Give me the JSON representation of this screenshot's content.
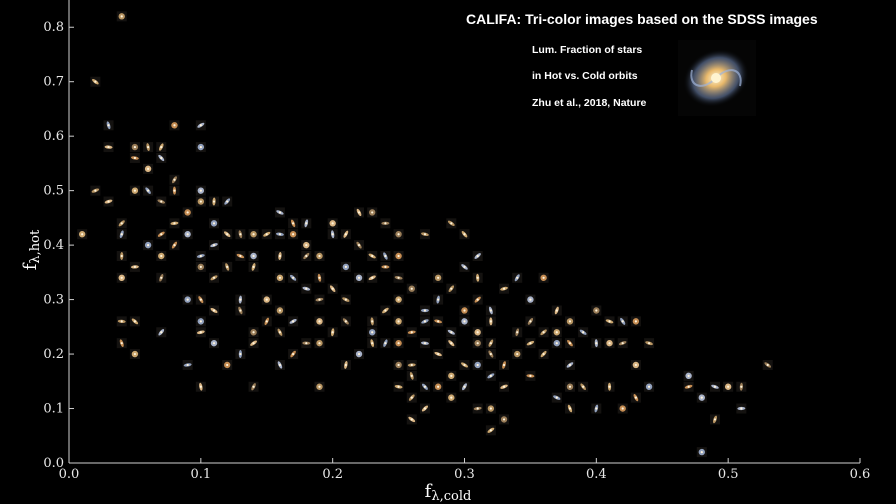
{
  "chart_data": {
    "type": "scatter",
    "title": "CALIFA: Tri-color images based on the SDSS images",
    "notes": [
      "Lum. Fraction of stars",
      "in Hot vs. Cold orbits",
      "Zhu et al., 2018, Nature"
    ],
    "xlabel": "f",
    "xlabel_sub": "λ,cold",
    "ylabel": "f",
    "ylabel_sub": "λ,hot",
    "xlim": [
      0.0,
      0.6
    ],
    "ylim": [
      0.0,
      0.85
    ],
    "xticks": [
      "0.0",
      "0.1",
      "0.2",
      "0.3",
      "0.4",
      "0.5",
      "0.6"
    ],
    "yticks": [
      "0.0",
      "0.1",
      "0.2",
      "0.3",
      "0.4",
      "0.5",
      "0.6",
      "0.7",
      "0.8"
    ],
    "marker": "galaxy-thumbnail",
    "points": [
      [
        0.04,
        0.82
      ],
      [
        0.02,
        0.7
      ],
      [
        0.03,
        0.62
      ],
      [
        0.08,
        0.62
      ],
      [
        0.1,
        0.62
      ],
      [
        0.03,
        0.58
      ],
      [
        0.05,
        0.58
      ],
      [
        0.06,
        0.58
      ],
      [
        0.07,
        0.58
      ],
      [
        0.1,
        0.58
      ],
      [
        0.05,
        0.56
      ],
      [
        0.07,
        0.56
      ],
      [
        0.06,
        0.54
      ],
      [
        0.08,
        0.52
      ],
      [
        0.02,
        0.5
      ],
      [
        0.05,
        0.5
      ],
      [
        0.06,
        0.5
      ],
      [
        0.08,
        0.5
      ],
      [
        0.1,
        0.5
      ],
      [
        0.03,
        0.48
      ],
      [
        0.07,
        0.48
      ],
      [
        0.1,
        0.48
      ],
      [
        0.11,
        0.48
      ],
      [
        0.12,
        0.48
      ],
      [
        0.09,
        0.46
      ],
      [
        0.16,
        0.46
      ],
      [
        0.22,
        0.46
      ],
      [
        0.23,
        0.46
      ],
      [
        0.04,
        0.44
      ],
      [
        0.08,
        0.44
      ],
      [
        0.11,
        0.44
      ],
      [
        0.17,
        0.44
      ],
      [
        0.18,
        0.44
      ],
      [
        0.2,
        0.44
      ],
      [
        0.24,
        0.44
      ],
      [
        0.29,
        0.44
      ],
      [
        0.01,
        0.42
      ],
      [
        0.04,
        0.42
      ],
      [
        0.07,
        0.42
      ],
      [
        0.09,
        0.42
      ],
      [
        0.12,
        0.42
      ],
      [
        0.13,
        0.42
      ],
      [
        0.14,
        0.42
      ],
      [
        0.15,
        0.42
      ],
      [
        0.16,
        0.42
      ],
      [
        0.17,
        0.42
      ],
      [
        0.2,
        0.42
      ],
      [
        0.21,
        0.42
      ],
      [
        0.25,
        0.42
      ],
      [
        0.27,
        0.42
      ],
      [
        0.3,
        0.42
      ],
      [
        0.06,
        0.4
      ],
      [
        0.08,
        0.4
      ],
      [
        0.11,
        0.4
      ],
      [
        0.18,
        0.4
      ],
      [
        0.22,
        0.4
      ],
      [
        0.04,
        0.38
      ],
      [
        0.07,
        0.38
      ],
      [
        0.1,
        0.38
      ],
      [
        0.13,
        0.38
      ],
      [
        0.14,
        0.38
      ],
      [
        0.16,
        0.38
      ],
      [
        0.18,
        0.38
      ],
      [
        0.19,
        0.38
      ],
      [
        0.23,
        0.38
      ],
      [
        0.24,
        0.38
      ],
      [
        0.25,
        0.38
      ],
      [
        0.31,
        0.38
      ],
      [
        0.05,
        0.36
      ],
      [
        0.1,
        0.36
      ],
      [
        0.12,
        0.36
      ],
      [
        0.14,
        0.36
      ],
      [
        0.21,
        0.36
      ],
      [
        0.24,
        0.36
      ],
      [
        0.3,
        0.36
      ],
      [
        0.04,
        0.34
      ],
      [
        0.07,
        0.34
      ],
      [
        0.11,
        0.34
      ],
      [
        0.16,
        0.34
      ],
      [
        0.17,
        0.34
      ],
      [
        0.19,
        0.34
      ],
      [
        0.22,
        0.34
      ],
      [
        0.23,
        0.34
      ],
      [
        0.25,
        0.34
      ],
      [
        0.28,
        0.34
      ],
      [
        0.31,
        0.34
      ],
      [
        0.34,
        0.34
      ],
      [
        0.36,
        0.34
      ],
      [
        0.18,
        0.32
      ],
      [
        0.2,
        0.32
      ],
      [
        0.26,
        0.32
      ],
      [
        0.29,
        0.32
      ],
      [
        0.33,
        0.32
      ],
      [
        0.09,
        0.3
      ],
      [
        0.1,
        0.3
      ],
      [
        0.13,
        0.3
      ],
      [
        0.15,
        0.3
      ],
      [
        0.19,
        0.3
      ],
      [
        0.21,
        0.3
      ],
      [
        0.25,
        0.3
      ],
      [
        0.28,
        0.3
      ],
      [
        0.31,
        0.3
      ],
      [
        0.35,
        0.3
      ],
      [
        0.11,
        0.28
      ],
      [
        0.13,
        0.28
      ],
      [
        0.16,
        0.28
      ],
      [
        0.24,
        0.28
      ],
      [
        0.27,
        0.28
      ],
      [
        0.3,
        0.28
      ],
      [
        0.32,
        0.28
      ],
      [
        0.37,
        0.28
      ],
      [
        0.4,
        0.28
      ],
      [
        0.04,
        0.26
      ],
      [
        0.05,
        0.26
      ],
      [
        0.1,
        0.26
      ],
      [
        0.15,
        0.26
      ],
      [
        0.17,
        0.26
      ],
      [
        0.19,
        0.26
      ],
      [
        0.21,
        0.26
      ],
      [
        0.23,
        0.26
      ],
      [
        0.25,
        0.26
      ],
      [
        0.27,
        0.26
      ],
      [
        0.28,
        0.26
      ],
      [
        0.3,
        0.26
      ],
      [
        0.32,
        0.26
      ],
      [
        0.35,
        0.26
      ],
      [
        0.38,
        0.26
      ],
      [
        0.41,
        0.26
      ],
      [
        0.42,
        0.26
      ],
      [
        0.43,
        0.26
      ],
      [
        0.07,
        0.24
      ],
      [
        0.1,
        0.24
      ],
      [
        0.14,
        0.24
      ],
      [
        0.16,
        0.24
      ],
      [
        0.2,
        0.24
      ],
      [
        0.23,
        0.24
      ],
      [
        0.26,
        0.24
      ],
      [
        0.29,
        0.24
      ],
      [
        0.31,
        0.24
      ],
      [
        0.34,
        0.24
      ],
      [
        0.36,
        0.24
      ],
      [
        0.37,
        0.24
      ],
      [
        0.39,
        0.24
      ],
      [
        0.04,
        0.22
      ],
      [
        0.11,
        0.22
      ],
      [
        0.14,
        0.22
      ],
      [
        0.18,
        0.22
      ],
      [
        0.19,
        0.22
      ],
      [
        0.23,
        0.22
      ],
      [
        0.24,
        0.22
      ],
      [
        0.25,
        0.22
      ],
      [
        0.27,
        0.22
      ],
      [
        0.29,
        0.22
      ],
      [
        0.31,
        0.22
      ],
      [
        0.32,
        0.22
      ],
      [
        0.35,
        0.22
      ],
      [
        0.37,
        0.22
      ],
      [
        0.38,
        0.22
      ],
      [
        0.4,
        0.22
      ],
      [
        0.41,
        0.22
      ],
      [
        0.42,
        0.22
      ],
      [
        0.44,
        0.22
      ],
      [
        0.05,
        0.2
      ],
      [
        0.13,
        0.2
      ],
      [
        0.17,
        0.2
      ],
      [
        0.22,
        0.2
      ],
      [
        0.28,
        0.2
      ],
      [
        0.32,
        0.2
      ],
      [
        0.34,
        0.2
      ],
      [
        0.36,
        0.2
      ],
      [
        0.09,
        0.18
      ],
      [
        0.12,
        0.18
      ],
      [
        0.16,
        0.18
      ],
      [
        0.21,
        0.18
      ],
      [
        0.25,
        0.18
      ],
      [
        0.26,
        0.18
      ],
      [
        0.3,
        0.18
      ],
      [
        0.31,
        0.18
      ],
      [
        0.33,
        0.18
      ],
      [
        0.38,
        0.18
      ],
      [
        0.43,
        0.18
      ],
      [
        0.53,
        0.18
      ],
      [
        0.26,
        0.16
      ],
      [
        0.29,
        0.16
      ],
      [
        0.32,
        0.16
      ],
      [
        0.35,
        0.16
      ],
      [
        0.47,
        0.16
      ],
      [
        0.1,
        0.14
      ],
      [
        0.14,
        0.14
      ],
      [
        0.19,
        0.14
      ],
      [
        0.25,
        0.14
      ],
      [
        0.27,
        0.14
      ],
      [
        0.28,
        0.14
      ],
      [
        0.3,
        0.14
      ],
      [
        0.33,
        0.14
      ],
      [
        0.38,
        0.14
      ],
      [
        0.39,
        0.14
      ],
      [
        0.41,
        0.14
      ],
      [
        0.44,
        0.14
      ],
      [
        0.47,
        0.14
      ],
      [
        0.49,
        0.14
      ],
      [
        0.5,
        0.14
      ],
      [
        0.51,
        0.14
      ],
      [
        0.26,
        0.12
      ],
      [
        0.29,
        0.12
      ],
      [
        0.37,
        0.12
      ],
      [
        0.43,
        0.12
      ],
      [
        0.48,
        0.12
      ],
      [
        0.27,
        0.1
      ],
      [
        0.31,
        0.1
      ],
      [
        0.32,
        0.1
      ],
      [
        0.38,
        0.1
      ],
      [
        0.4,
        0.1
      ],
      [
        0.42,
        0.1
      ],
      [
        0.51,
        0.1
      ],
      [
        0.26,
        0.08
      ],
      [
        0.33,
        0.08
      ],
      [
        0.49,
        0.08
      ],
      [
        0.32,
        0.06
      ],
      [
        0.48,
        0.02
      ]
    ]
  }
}
